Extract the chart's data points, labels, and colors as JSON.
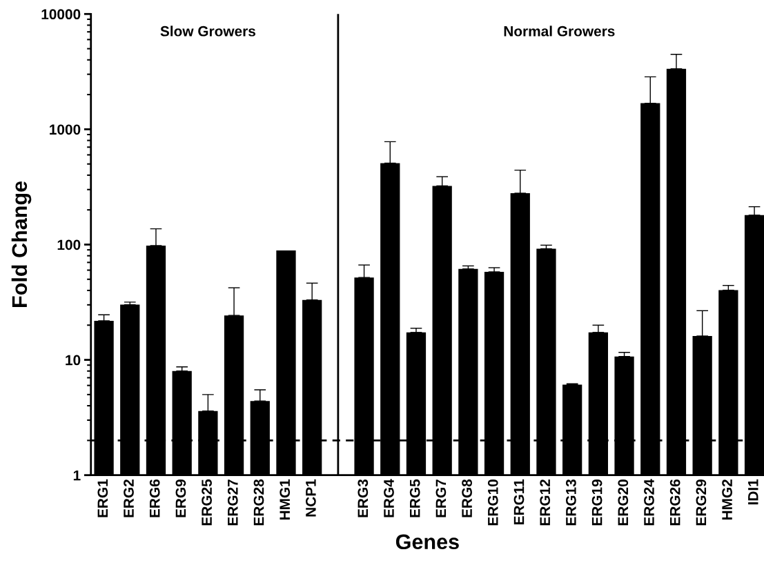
{
  "chart_data": {
    "type": "bar",
    "xlabel": "Genes",
    "ylabel": "Fold Change",
    "annotations": [
      "Slow Growers",
      "Normal Growers"
    ],
    "categories": [
      "ERG1",
      "ERG2",
      "ERG6",
      "ERG9",
      "ERG25",
      "ERG27",
      "ERG28",
      "HMG1",
      "NCP1",
      null,
      "ERG3",
      "ERG4",
      "ERG5",
      "ERG7",
      "ERG8",
      "ERG10",
      "ERG11",
      "ERG12",
      "ERG13",
      "ERG19",
      "ERG20",
      "ERG24",
      "ERG26",
      "ERG29",
      "HMG2",
      "IDI1"
    ],
    "values": [
      21.8,
      30.1,
      98,
      8.0,
      3.6,
      24.3,
      4.4,
      89,
      33.1,
      null,
      51.8,
      509,
      17.3,
      323,
      61.5,
      58,
      279,
      92,
      6.1,
      17.3,
      10.7,
      1683,
      3345,
      16.1,
      40.2,
      180
    ],
    "errors": [
      [
        21.8,
        24.6
      ],
      [
        30.1,
        31.7
      ],
      [
        98,
        137
      ],
      [
        8.0,
        8.7
      ],
      [
        3.6,
        5.0
      ],
      [
        24.3,
        42.2
      ],
      [
        4.4,
        5.5
      ],
      null,
      [
        33.1,
        46.3
      ],
      null,
      [
        51.8,
        66.5
      ],
      [
        509,
        780
      ],
      [
        17.3,
        18.8
      ],
      [
        323,
        388
      ],
      [
        61.5,
        65.3
      ],
      [
        58,
        63
      ],
      [
        279,
        442
      ],
      [
        92,
        98.8
      ],
      [
        6.1,
        6.2
      ],
      [
        17.3,
        20
      ],
      [
        10.7,
        11.6
      ],
      [
        1683,
        2850
      ],
      [
        3345,
        4470
      ],
      [
        16.1,
        26.7
      ],
      [
        40.2,
        44.2
      ],
      [
        180,
        213
      ]
    ],
    "color": "#000000",
    "log": "y",
    "ylim": [
      1,
      10000
    ],
    "yticks": [
      1,
      10,
      100,
      1000,
      10000
    ],
    "ref_lines": [
      {
        "axis": "y",
        "value": 2,
        "line_style": "dashed",
        "color": "#000000"
      }
    ]
  }
}
